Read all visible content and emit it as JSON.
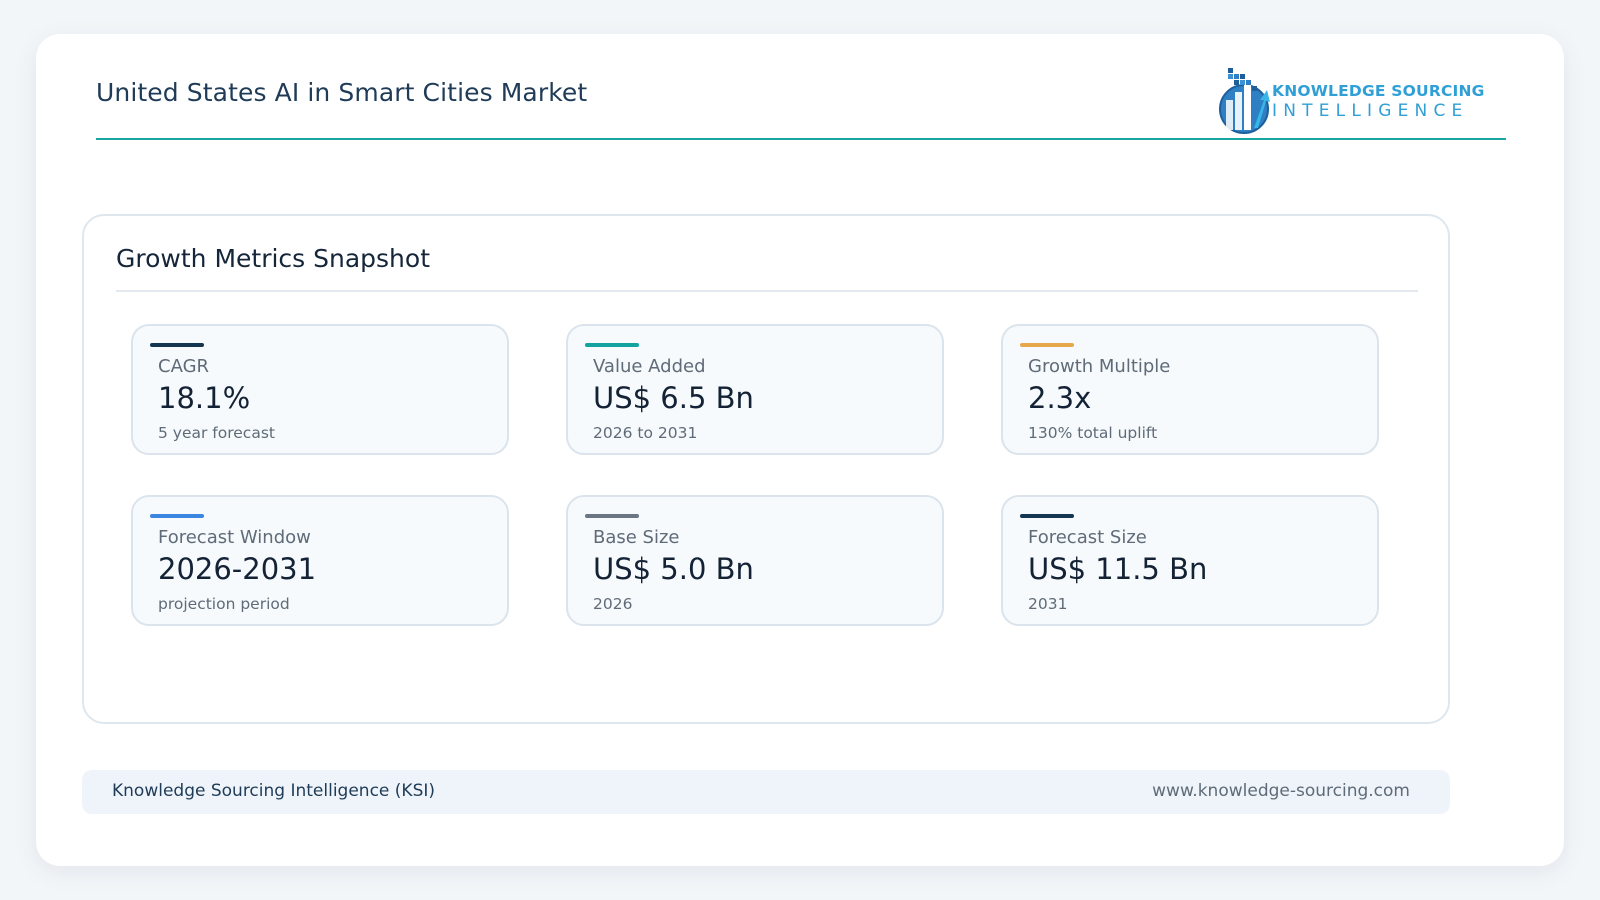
{
  "header": {
    "title": "United States AI in Smart Cities Market",
    "accent_color": "#1aa6a0"
  },
  "logo": {
    "line1": "KNOWLEDGE SOURCING",
    "line2": "INTELLIGENCE",
    "color": "#2f9fd6",
    "icon": "building-chart-logo-icon"
  },
  "panel": {
    "title": "Growth Metrics Snapshot"
  },
  "metrics": [
    {
      "label": "CAGR",
      "value": "18.1%",
      "sub": "5 year forecast",
      "accent": "#143650"
    },
    {
      "label": "Value Added",
      "value": "US$ 6.5 Bn",
      "sub": "2026 to 2031",
      "accent": "#12a3a0"
    },
    {
      "label": "Growth Multiple",
      "value": "2.3x",
      "sub": "130% total uplift",
      "accent": "#e6a84a"
    },
    {
      "label": "Forecast Window",
      "value": "2026-2031",
      "sub": "projection period",
      "accent": "#3a86e0"
    },
    {
      "label": "Base Size",
      "value": "US$ 5.0 Bn",
      "sub": "2026",
      "accent": "#6b7685"
    },
    {
      "label": "Forecast Size",
      "value": "US$ 11.5 Bn",
      "sub": "2031",
      "accent": "#143650"
    }
  ],
  "footer": {
    "left": "Knowledge Sourcing Intelligence (KSI)",
    "right": "www.knowledge-sourcing.com"
  }
}
